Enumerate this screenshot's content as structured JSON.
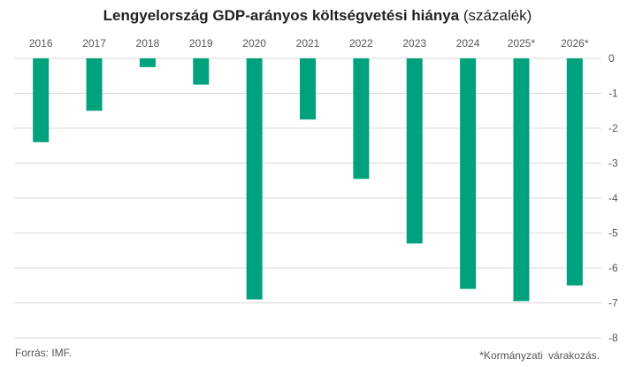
{
  "title": {
    "main": "Lengyelország GDP-arányos költségvetési hiánya",
    "unit": "(százalék)"
  },
  "source": "Forrás:  IMF.",
  "footnote": "*Kormányzati  várakozás.",
  "colors": {
    "bar": "#00a17d",
    "grid": "#d9d9d9",
    "axis_text": "#555555"
  },
  "chart_data": {
    "type": "bar",
    "categories": [
      "2016",
      "2017",
      "2018",
      "2019",
      "2020",
      "2021",
      "2022",
      "2023",
      "2024",
      "2025*",
      "2026*"
    ],
    "values": [
      -2.4,
      -1.5,
      -0.25,
      -0.75,
      -6.9,
      -1.75,
      -3.45,
      -5.3,
      -6.6,
      -6.95,
      -6.5
    ],
    "ylim": [
      -8,
      0
    ],
    "yticks": [
      "0",
      "-1",
      "-2",
      "-3",
      "-4",
      "-5",
      "-6",
      "-7",
      "-8"
    ],
    "ytick_values": [
      0,
      -1,
      -2,
      -3,
      -4,
      -5,
      -6,
      -7,
      -8
    ],
    "category_labels_position": "top",
    "y_axis_position": "right",
    "grid": true,
    "title": "Lengyelország GDP-arányos költségvetési hiánya (százalék)",
    "xlabel": "",
    "ylabel": ""
  }
}
